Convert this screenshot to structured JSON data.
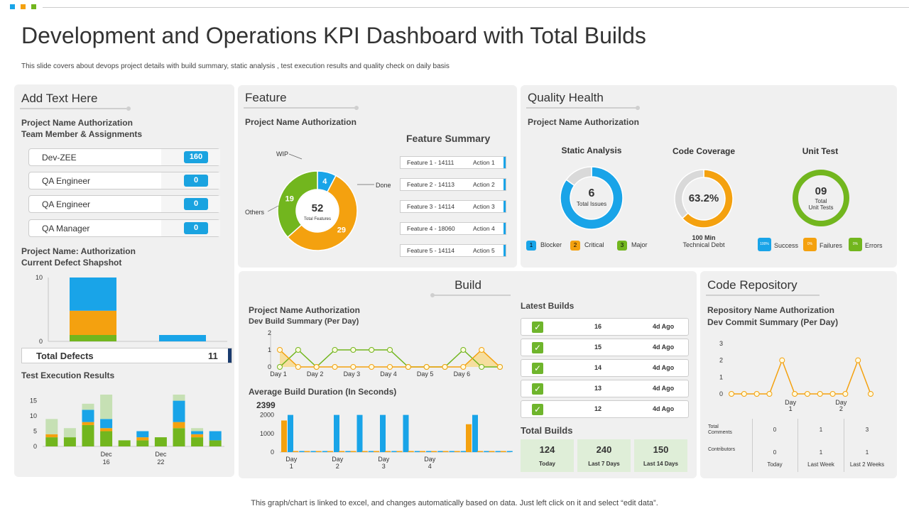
{
  "title": "Development and Operations KPI Dashboard with Total Builds",
  "subtitle": "This slide covers about devops project details with build summary, static analysis , test execution results and quality check on daily basis",
  "footer": "This graph/chart is linked to excel, and changes automatically based on data. Just left click on it and select “edit data”.",
  "colors": {
    "blue": "#19a4e8",
    "orange": "#f4a10f",
    "green": "#72b61e",
    "gray": "#d9d9d9",
    "panel": "#f0f0f0"
  },
  "left": {
    "title": "Add Text Here",
    "project": [
      "Project Name Authorization",
      "Team Member & Assignments"
    ],
    "members": [
      {
        "name": "Dev-ZEE",
        "count": "160"
      },
      {
        "name": "QA Engineer",
        "count": "0"
      },
      {
        "name": "QA Engineer",
        "count": "0"
      },
      {
        "name": "QA Manager",
        "count": "0"
      }
    ],
    "defect_title": [
      "Project Name: Authorization",
      "Current Defect Shapshot"
    ],
    "total_defects_label": "Total Defects",
    "total_defects_value": "11",
    "test_exec_title": "Test Execution Results"
  },
  "feature": {
    "title": "Feature",
    "project": "Project Name Authorization",
    "summary_title": "Feature Summary",
    "donut_center": "52",
    "donut_center_label": "Total Features",
    "donut_labels": {
      "wip": "WIP",
      "done": "Done",
      "others": "Others"
    },
    "items": [
      {
        "name": "Feature 1 - 14111",
        "action": "Action 1"
      },
      {
        "name": "Feature 2 - 14113",
        "action": "Action 2"
      },
      {
        "name": "Feature 3 - 14114",
        "action": "Action 3"
      },
      {
        "name": "Feature 4 - 18060",
        "action": "Action 4"
      },
      {
        "name": "Feature 5 - 14114",
        "action": "Action 5"
      }
    ]
  },
  "quality": {
    "title": "Quality Health",
    "project": "Project Name Authorization",
    "static": {
      "title": "Static Analysis",
      "value": "6",
      "label": "Total Issues"
    },
    "coverage": {
      "title": "Code Coverage",
      "value": "63.2%",
      "note1": "100 Min",
      "note2": "Technical Debt"
    },
    "unit": {
      "title": "Unit Test",
      "value": "09",
      "label1": "Total",
      "label2": "Unit Tests"
    },
    "legend1": [
      {
        "badge": "1",
        "label": "Blocker",
        "color": "#19a4e8"
      },
      {
        "badge": "2",
        "label": "Critical",
        "color": "#f4a10f"
      },
      {
        "badge": "3",
        "label": "Major",
        "color": "#72b61e"
      }
    ],
    "legend2": [
      {
        "badge": "100%",
        "label": "Success",
        "color": "#19a4e8"
      },
      {
        "badge": "0%",
        "label": "Failures",
        "color": "#f4a10f"
      },
      {
        "badge": "0%",
        "label": "Errors",
        "color": "#72b61e"
      }
    ]
  },
  "build": {
    "title": "Build",
    "project": "Project Name Authorization",
    "summary": "Dev Build Summary (Per Day)",
    "avg_title": "Average Build Duration (In Seconds)",
    "avg_value": "2399",
    "latest_title": "Latest Builds",
    "latest": [
      {
        "id": "16",
        "ago": "4d Ago"
      },
      {
        "id": "15",
        "ago": "4d Ago"
      },
      {
        "id": "14",
        "ago": "4d Ago"
      },
      {
        "id": "13",
        "ago": "4d Ago"
      },
      {
        "id": "12",
        "ago": "4d Ago"
      }
    ],
    "total_title": "Total Builds",
    "totals": [
      {
        "value": "124",
        "label": "Today"
      },
      {
        "value": "240",
        "label": "Last 7 Days"
      },
      {
        "value": "150",
        "label": "Last 14 Days"
      }
    ]
  },
  "repo": {
    "title": "Code Repository",
    "project": "Repository Name Authorization",
    "summary": "Dev Commit Summary (Per Day)",
    "table": {
      "rows": [
        {
          "label1": "Total",
          "label2": "Comments",
          "values": [
            "0",
            "1",
            "3"
          ]
        },
        {
          "label1": "Contributors",
          "label2": "",
          "values": [
            "0",
            "1",
            "1"
          ]
        }
      ],
      "cols": [
        "Today",
        "Last Week",
        "Last 2 Weeks"
      ]
    }
  },
  "chart_data": [
    {
      "id": "defect_snapshot",
      "type": "bar",
      "stacked": true,
      "categories": [
        "A",
        "B"
      ],
      "series": [
        {
          "name": "Green",
          "color": "#72b61e",
          "values": [
            1,
            0
          ]
        },
        {
          "name": "Orange",
          "color": "#f4a10f",
          "values": [
            3.8,
            0
          ]
        },
        {
          "name": "Blue",
          "color": "#19a4e8",
          "values": [
            5.2,
            1
          ]
        }
      ],
      "yticks": [
        "0",
        "10"
      ],
      "ylim": [
        0,
        10
      ]
    },
    {
      "id": "test_execution",
      "type": "bar",
      "stacked": true,
      "categories": [
        "1",
        "2",
        "3",
        "4",
        "5",
        "6",
        "7",
        "8",
        "9",
        "10"
      ],
      "xlabels": [
        {
          "index": 3,
          "l1": "Dec",
          "l2": "16"
        },
        {
          "index": 6,
          "l1": "Dec",
          "l2": "22"
        }
      ],
      "series": [
        {
          "name": "Green",
          "color": "#72b61e",
          "values": [
            3,
            3,
            7,
            5,
            2,
            2,
            3,
            6,
            3,
            2
          ]
        },
        {
          "name": "Orange",
          "color": "#f4a10f",
          "values": [
            1,
            0,
            1,
            1,
            0,
            1,
            0,
            2,
            1,
            0
          ]
        },
        {
          "name": "Blue",
          "color": "#19a4e8",
          "values": [
            0,
            0,
            4,
            3,
            0,
            2,
            0,
            7,
            1,
            3
          ]
        },
        {
          "name": "LightGreen",
          "color": "#c6e0b4",
          "values": [
            5,
            3,
            2,
            8,
            0,
            0,
            0,
            2,
            1,
            0
          ]
        }
      ],
      "yticks": [
        "0",
        "5",
        "10",
        "15"
      ],
      "ylim": [
        0,
        17
      ]
    },
    {
      "id": "dev_build_summary",
      "type": "line",
      "x": [
        0,
        1,
        2,
        3,
        4,
        5,
        6,
        7,
        8,
        9,
        10,
        11,
        12
      ],
      "xlabels": [
        {
          "index": 0,
          "l": "Day 1"
        },
        {
          "index": 2,
          "l": "Day 2"
        },
        {
          "index": 4,
          "l": "Day 3"
        },
        {
          "index": 6,
          "l": "Day 4"
        },
        {
          "index": 8,
          "l": "Day 5"
        },
        {
          "index": 10,
          "l": "Day 6"
        }
      ],
      "series": [
        {
          "name": "Success",
          "color": "#72b61e",
          "values": [
            0,
            1,
            0,
            1,
            1,
            1,
            1,
            0,
            0,
            0,
            1,
            0,
            0
          ]
        },
        {
          "name": "Failed",
          "color": "#f4a10f",
          "values": [
            1,
            0,
            0,
            0,
            0,
            0,
            0,
            0,
            0,
            0,
            0,
            1,
            0
          ]
        }
      ],
      "yticks": [
        "0",
        "1",
        "2"
      ],
      "ylim": [
        0,
        2
      ]
    },
    {
      "id": "avg_build_duration",
      "type": "bar",
      "groups": 20,
      "series": [
        {
          "name": "Orange",
          "color": "#f4a10f",
          "values": [
            1700,
            0,
            0,
            0,
            0,
            0,
            0,
            0,
            0,
            0,
            0,
            0,
            0,
            0,
            0,
            0,
            1500,
            0,
            0,
            0
          ]
        },
        {
          "name": "Blue",
          "color": "#19a4e8",
          "values": [
            2000,
            0,
            0,
            0,
            2000,
            0,
            2000,
            0,
            2000,
            0,
            2000,
            0,
            0,
            0,
            0,
            0,
            2000,
            0,
            0,
            0
          ]
        }
      ],
      "xlabels": [
        {
          "index": 1,
          "l1": "Day",
          "l2": "1"
        },
        {
          "index": 5,
          "l1": "Day",
          "l2": "2"
        },
        {
          "index": 9,
          "l1": "Day",
          "l2": "3"
        },
        {
          "index": 13,
          "l1": "Day",
          "l2": "4"
        }
      ],
      "yticks": [
        "0",
        "1000",
        "2000"
      ],
      "ylim": [
        0,
        2100
      ]
    },
    {
      "id": "commit_summary",
      "type": "line",
      "x": [
        0,
        1,
        2,
        3,
        4,
        5,
        6,
        7,
        8,
        9,
        10,
        11
      ],
      "series": [
        {
          "name": "Commits",
          "color": "#f4a10f",
          "values": [
            0,
            0,
            0,
            0,
            2,
            0,
            0,
            0,
            0,
            0,
            2,
            0
          ]
        }
      ],
      "xlabels": [
        {
          "index": 5,
          "l1": "Day",
          "l2": "1"
        },
        {
          "index": 9,
          "l1": "Day",
          "l2": "2"
        }
      ],
      "yticks": [
        "0",
        "1",
        "2",
        "3"
      ],
      "ylim": [
        0,
        3
      ]
    },
    {
      "id": "feature_donut",
      "type": "pie",
      "slices": [
        {
          "label": "WIP",
          "value": 4,
          "color": "#19a4e8"
        },
        {
          "label": "Done",
          "value": 29,
          "color": "#f4a10f"
        },
        {
          "label": "Others",
          "value": 19,
          "color": "#72b61e"
        }
      ]
    },
    {
      "id": "static_analysis",
      "type": "pie",
      "slices": [
        {
          "label": "Issues",
          "value": 85,
          "color": "#19a4e8"
        },
        {
          "label": "Rest",
          "value": 15,
          "color": "#d9d9d9"
        }
      ]
    },
    {
      "id": "code_coverage",
      "type": "pie",
      "slices": [
        {
          "label": "Covered",
          "value": 63.2,
          "color": "#f4a10f"
        },
        {
          "label": "Uncovered",
          "value": 36.8,
          "color": "#d9d9d9"
        }
      ]
    },
    {
      "id": "unit_test",
      "type": "pie",
      "slices": [
        {
          "label": "Success",
          "value": 100,
          "color": "#72b61e"
        }
      ]
    }
  ]
}
